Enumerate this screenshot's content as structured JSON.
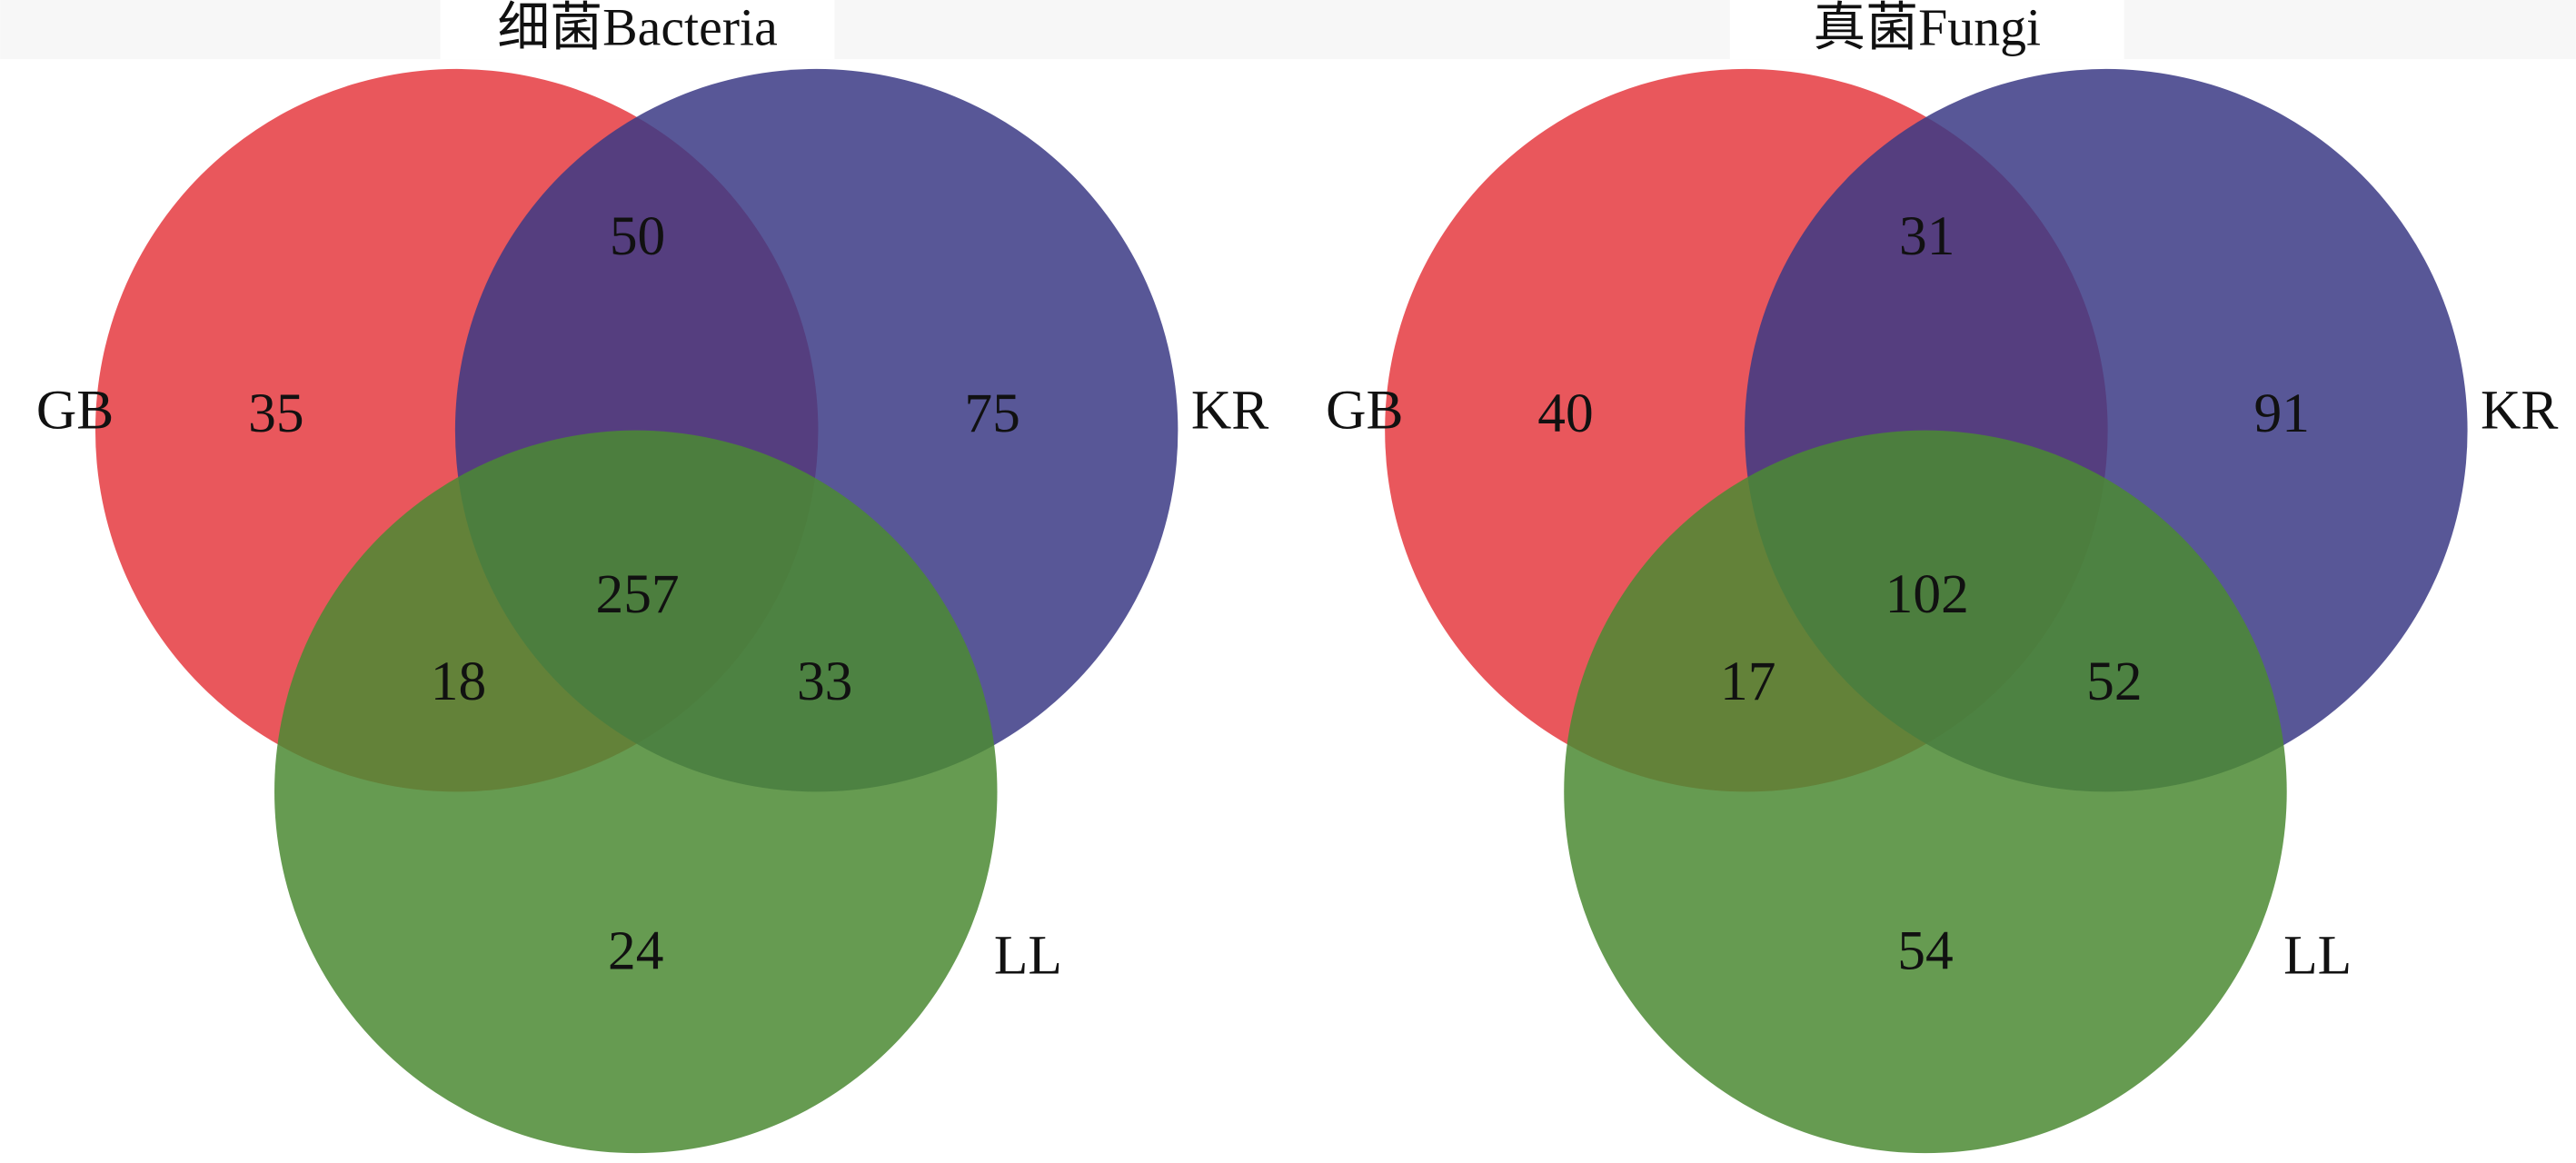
{
  "chart_data": [
    {
      "type": "venn",
      "title": "细菌Bacteria",
      "sets": [
        {
          "name": "GB",
          "color": "#e5393f"
        },
        {
          "name": "KR",
          "color": "#3b3a85"
        },
        {
          "name": "LL",
          "color": "#4b8a32"
        }
      ],
      "values": [
        35,
        75,
        24,
        50,
        18,
        33,
        257
      ]
    },
    {
      "type": "venn",
      "title": "真菌Fungi",
      "sets": [
        {
          "name": "GB",
          "color": "#e5393f"
        },
        {
          "name": "KR",
          "color": "#3b3a85"
        },
        {
          "name": "LL",
          "color": "#4b8a32"
        }
      ],
      "values": [
        40,
        91,
        54,
        31,
        17,
        52,
        102
      ]
    }
  ]
}
